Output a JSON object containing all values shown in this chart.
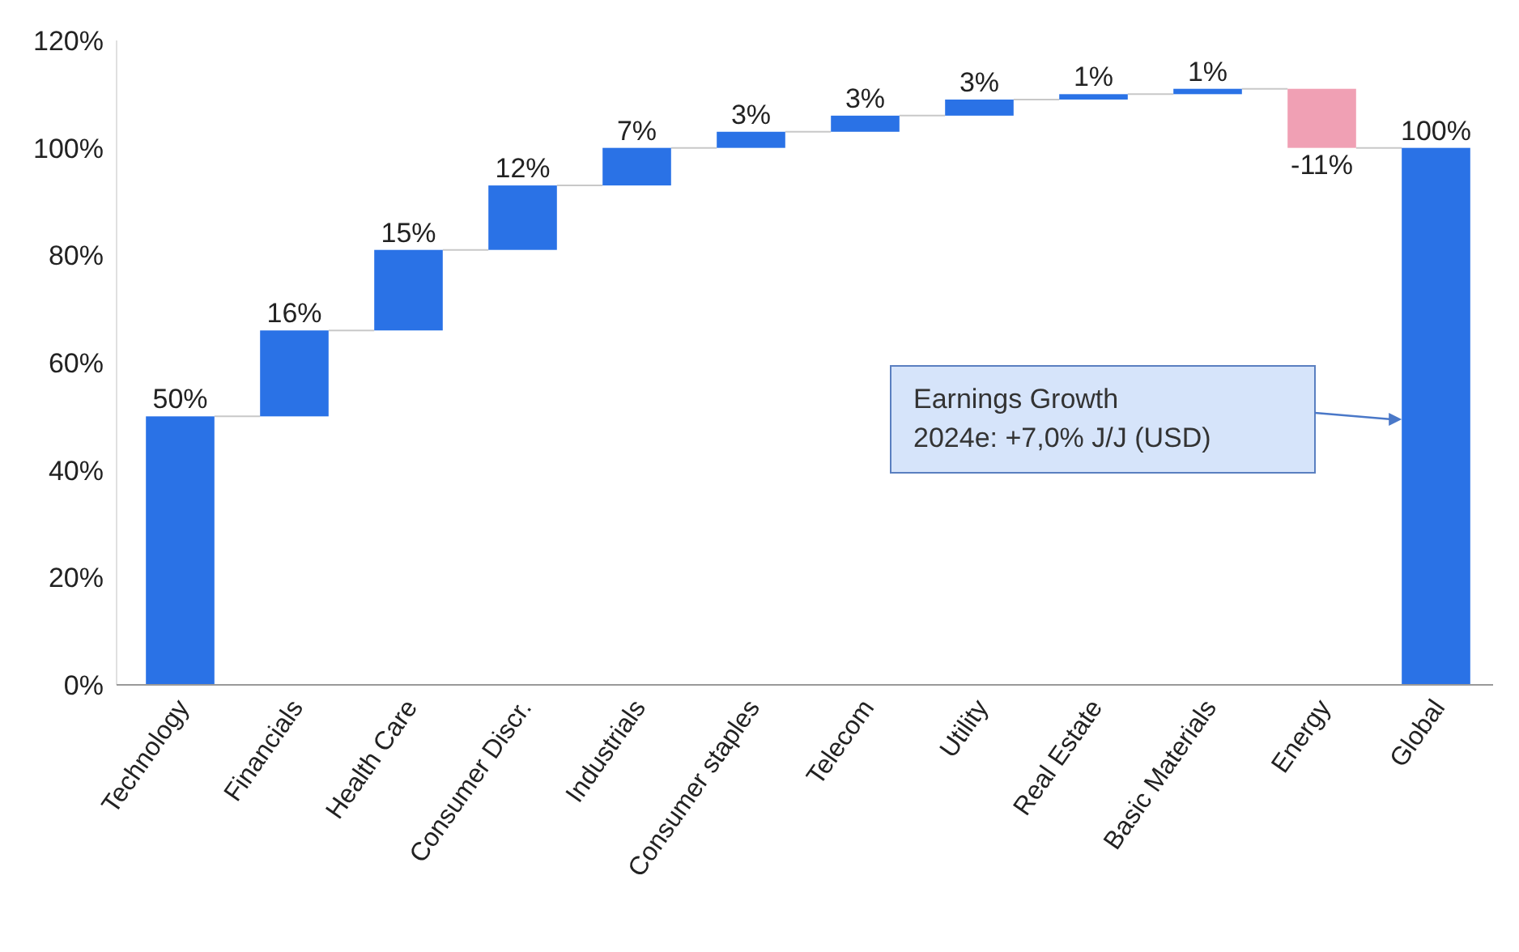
{
  "chart_data": {
    "type": "bar",
    "categories": [
      "Technology",
      "Financials",
      "Health Care",
      "Consumer Discr.",
      "Industrials",
      "Consumer staples",
      "Telecom",
      "Utility",
      "Real Estate",
      "Basic Materials",
      "Energy",
      "Global"
    ],
    "values": [
      50,
      16,
      15,
      12,
      7,
      3,
      3,
      3,
      1,
      1,
      -11,
      100
    ],
    "base": [
      0,
      50,
      66,
      81,
      93,
      100,
      103,
      106,
      109,
      110,
      111,
      0
    ],
    "colors": [
      "#2a72e6",
      "#2a72e6",
      "#2a72e6",
      "#2a72e6",
      "#2a72e6",
      "#2a72e6",
      "#2a72e6",
      "#2a72e6",
      "#2a72e6",
      "#2a72e6",
      "#f0a0b4",
      "#2a72e6"
    ],
    "value_labels": [
      "50%",
      "16%",
      "15%",
      "12%",
      "7%",
      "3%",
      "3%",
      "3%",
      "1%",
      "1%",
      "-11%",
      "100%"
    ],
    "ylim": [
      0,
      120
    ],
    "yticks": [
      {
        "value": 0,
        "label": "0%"
      },
      {
        "value": 20,
        "label": "20%"
      },
      {
        "value": 40,
        "label": "40%"
      },
      {
        "value": 60,
        "label": "60%"
      },
      {
        "value": 80,
        "label": "80%"
      },
      {
        "value": 100,
        "label": "100%"
      },
      {
        "value": 120,
        "label": "120%"
      }
    ],
    "grid": false,
    "annotations": [
      "Earnings Growth\n2024e: +7,0% J/J (USD)"
    ]
  }
}
